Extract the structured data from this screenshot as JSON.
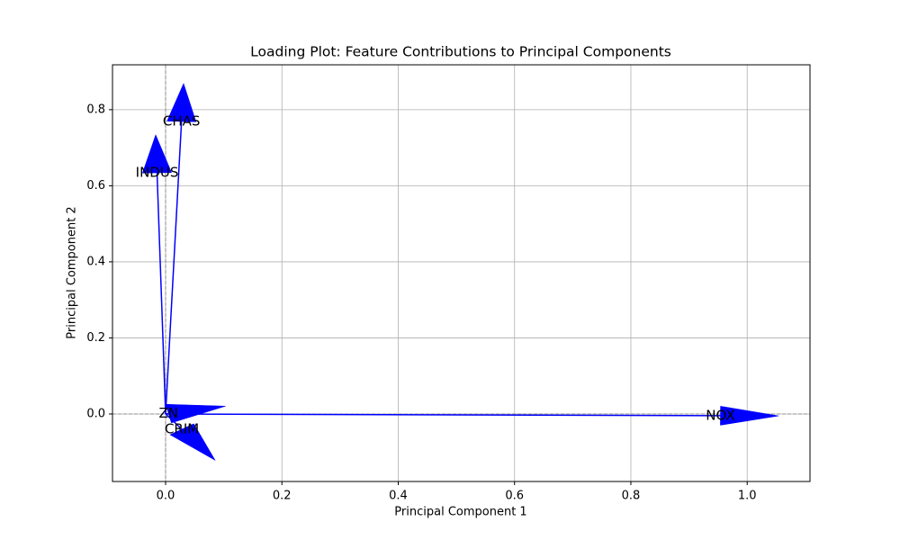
{
  "chart_data": {
    "type": "loading",
    "title": "Loading Plot: Feature Contributions to Principal Components",
    "x_label": "Principal Component 1",
    "y_label": "Principal Component 2",
    "labels": [
      "CRIM",
      "ZN",
      "INDUS",
      "CHAS",
      "NOX"
    ],
    "x": [
      0.028,
      0.005,
      -0.0147,
      0.0274,
      0.954
    ],
    "values": [
      -0.04,
      0.001,
      0.634,
      0.769,
      -0.0045
    ],
    "color": "#0000ff",
    "xlim": [
      -0.0913,
      1.108
    ],
    "ylim": [
      -0.1775,
      0.918
    ],
    "xticks": [
      {
        "value": 0,
        "label": "0.0"
      },
      0.2,
      0.4,
      0.6,
      0.8,
      {
        "value": 1,
        "label": "1.0"
      }
    ],
    "yticks": [
      {
        "value": 0,
        "label": "0.0"
      },
      0.2,
      0.4,
      0.6,
      0.8
    ],
    "grid": true,
    "zero_lines": true
  }
}
